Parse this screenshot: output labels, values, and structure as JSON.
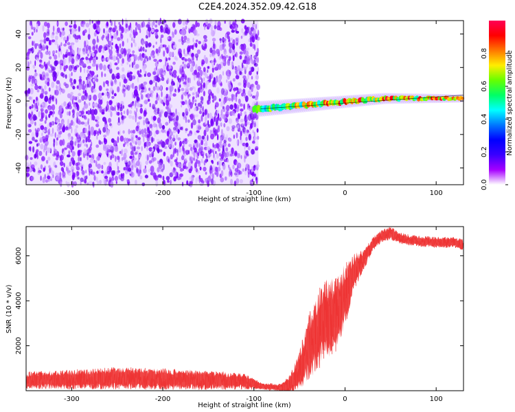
{
  "title": "C2E4.2024.352.09.42.G18",
  "chart_data": [
    {
      "type": "heatmap",
      "title": "C2E4.2024.352.09.42.G18",
      "xlabel": "Height of straight line (km)",
      "ylabel": "Frequency (Hz)",
      "xlim": [
        -350,
        130
      ],
      "ylim": [
        -50,
        48
      ],
      "x_ticks": [
        -300,
        -200,
        -100,
        0,
        100
      ],
      "y_ticks": [
        -40,
        -20,
        0,
        20,
        40
      ],
      "grid": false,
      "colorbar": {
        "label": "Normalized spectral amplitude",
        "range": [
          0,
          1
        ],
        "ticks": [
          "0.0",
          "0.2",
          "0.4",
          "0.6",
          "0.8"
        ],
        "colormap": [
          "#ffffff",
          "#a600ff",
          "#3a00ff",
          "#0000ff",
          "#0077ff",
          "#00ffff",
          "#00ff66",
          "#66ff00",
          "#ffee00",
          "#ff7700",
          "#ff0000",
          "#ff0055"
        ]
      },
      "regions": [
        {
          "name": "noise",
          "x_range": [
            -350,
            -95
          ],
          "freq_range": [
            -50,
            48
          ],
          "amplitude_range": [
            0.0,
            0.1
          ],
          "color": "#7a00ff"
        },
        {
          "name": "signal-line",
          "x_range": [
            -100,
            130
          ],
          "freq_start": -5,
          "freq_end": 1.5,
          "amplitude_range": [
            0.2,
            0.98
          ]
        }
      ]
    },
    {
      "type": "line",
      "xlabel": "Height of straight line (km)",
      "ylabel": "SNR (10 * v/v)",
      "xlim": [
        -350,
        130
      ],
      "ylim": [
        0,
        7300
      ],
      "x_ticks": [
        -300,
        -200,
        -100,
        0,
        100
      ],
      "y_ticks": [
        2000,
        4000,
        6000
      ],
      "grid": false,
      "series": [
        {
          "color": "#ee3333",
          "envelope": {
            "x": [
              -350,
              -300,
              -250,
              -200,
              -150,
              -110,
              -90,
              -70,
              -60,
              -50,
              -40,
              -30,
              -20,
              -10,
              0,
              10,
              20,
              30,
              40,
              50,
              60,
              70,
              80,
              100,
              120,
              130
            ],
            "mean": [
              450,
              500,
              560,
              520,
              470,
              400,
              200,
              120,
              300,
              900,
              1900,
              2700,
              3200,
              3300,
              4200,
              5300,
              5800,
              6500,
              6900,
              7000,
              6800,
              6700,
              6650,
              6600,
              6600,
              6500
            ],
            "spread": [
              400,
              450,
              500,
              480,
              450,
              350,
              150,
              180,
              500,
              900,
              1500,
              1800,
              1800,
              1700,
              1500,
              800,
              500,
              350,
              300,
              300,
              250,
              250,
              250,
              250,
              250,
              250
            ]
          }
        }
      ]
    }
  ]
}
